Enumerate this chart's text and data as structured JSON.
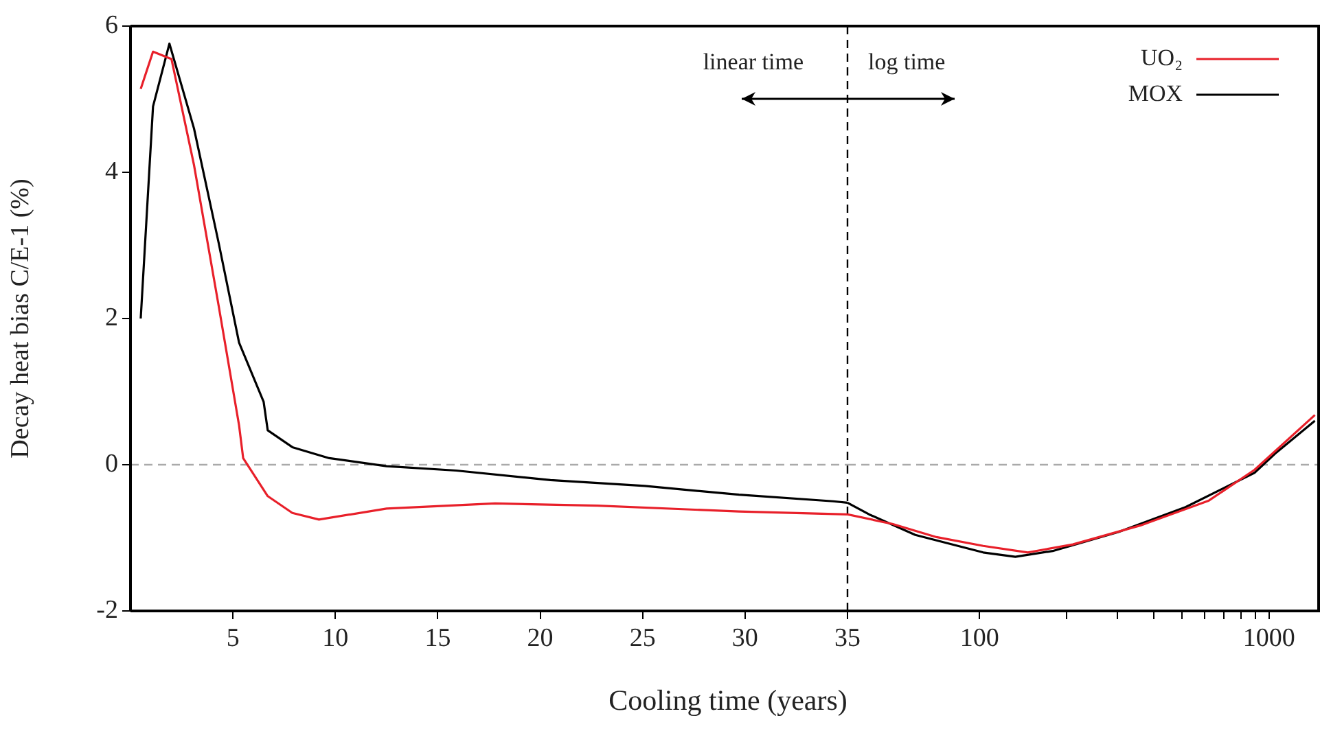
{
  "chart_data": [
    {
      "type": "line",
      "ylabel": "Decay heat bias C/E-1 (%)",
      "xlabel": "Cooling time (years)",
      "xlim": [
        0,
        35
      ],
      "xticks": [
        5,
        10,
        15,
        20,
        25,
        30,
        35
      ],
      "ylim": [
        -2,
        6
      ],
      "yticks": [
        -2,
        0,
        2,
        4,
        6
      ],
      "legend": false,
      "annotations": [
        "linear time"
      ],
      "ref_lines": [
        {
          "axis": "x",
          "value": 35,
          "line_style": "dashed",
          "color": "#000000"
        },
        {
          "axis": "y",
          "value": 0,
          "line_style": "dashed",
          "color": "#aaaaaa"
        }
      ],
      "series": [
        {
          "color": "#e8202a",
          "x": [
            0.5,
            1.1,
            2.0,
            3.1,
            4.3,
            5.3,
            5.5,
            6.7,
            7.9,
            9.2,
            12.5,
            17.8,
            22.8,
            29.7,
            35
          ],
          "values": [
            5.14,
            5.65,
            5.55,
            4.1,
            2.18,
            0.54,
            0.09,
            -0.43,
            -0.66,
            -0.75,
            -0.6,
            -0.53,
            -0.56,
            -0.64,
            -0.68
          ]
        },
        {
          "color": "#000000",
          "x": [
            0.5,
            1.1,
            1.9,
            3.1,
            4.3,
            5.3,
            6.5,
            6.7,
            7.9,
            9.7,
            12.5,
            15.9,
            20.5,
            25.1,
            29.7,
            34.3,
            35
          ],
          "values": [
            2.0,
            4.9,
            5.76,
            4.6,
            3.04,
            1.67,
            0.86,
            0.47,
            0.24,
            0.09,
            -0.02,
            -0.08,
            -0.21,
            -0.29,
            -0.41,
            -0.5,
            -0.52
          ]
        }
      ]
    },
    {
      "type": "line",
      "log": "x",
      "xlim": [
        35,
        1500
      ],
      "xticks": [
        100,
        {
          "value": 200,
          "label": null
        },
        {
          "value": 300,
          "label": null
        },
        {
          "value": 400,
          "label": null
        },
        {
          "value": 500,
          "label": null
        },
        {
          "value": 600,
          "label": null
        },
        {
          "value": 700,
          "label": null
        },
        {
          "value": 800,
          "label": null
        },
        {
          "value": 900,
          "label": null
        },
        1000
      ],
      "ylim": [
        -2,
        6
      ],
      "tick_labels": "x",
      "legend": "top right",
      "annotations": [
        "log time"
      ],
      "ref_lines": [
        {
          "axis": "y",
          "value": 0,
          "line_style": "dashed",
          "color": "#aaaaaa"
        }
      ],
      "series": [
        {
          "name": "UO₂",
          "color": "#e8202a",
          "x": [
            35,
            50,
            71,
            103,
            147,
            210,
            360,
            620,
            891,
            1440
          ],
          "values": [
            -0.68,
            -0.81,
            -0.99,
            -1.11,
            -1.2,
            -1.09,
            -0.83,
            -0.49,
            -0.07,
            0.68
          ]
        },
        {
          "name": "MOX",
          "color": "#000000",
          "x": [
            35,
            41.6,
            60,
            103,
            133,
            179,
            302,
            515,
            891,
            1062,
            1440
          ],
          "values": [
            -0.52,
            -0.68,
            -0.96,
            -1.2,
            -1.26,
            -1.18,
            -0.92,
            -0.58,
            -0.11,
            0.17,
            0.6
          ]
        }
      ]
    }
  ]
}
